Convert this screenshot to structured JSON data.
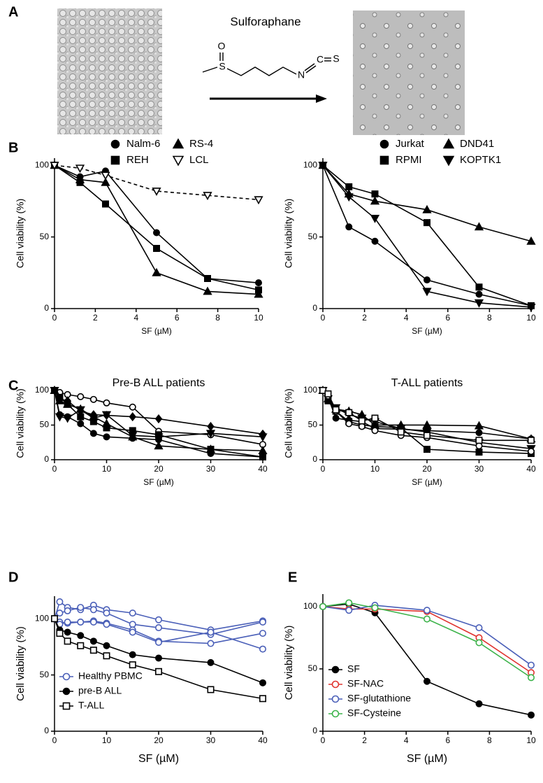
{
  "figure": {
    "panel_labels": [
      "A",
      "B",
      "C",
      "D",
      "E"
    ],
    "compound_name": "Sulforaphane",
    "atoms": [
      "O",
      "S",
      "N",
      "C",
      "S"
    ]
  },
  "chart_data": [
    {
      "type": "line",
      "x": [
        0,
        1.25,
        2.5,
        5,
        7.5,
        10
      ],
      "xlim": [
        0,
        10
      ],
      "xticks": [
        0,
        2,
        4,
        6,
        8,
        10
      ],
      "ylim": [
        0,
        105
      ],
      "yticks": [
        0,
        50,
        100
      ],
      "xlabel": "SF (µM)",
      "ylabel": "Cell viability (%)",
      "series": [
        {
          "name": "Nalm-6",
          "color": "#000000",
          "marker": "circle",
          "filled": true,
          "values": [
            100,
            92,
            96,
            53,
            21,
            18
          ]
        },
        {
          "name": "REH",
          "color": "#000000",
          "marker": "square",
          "filled": true,
          "values": [
            100,
            88,
            73,
            42,
            21,
            13
          ]
        },
        {
          "name": "RS-4",
          "color": "#000000",
          "marker": "triangle",
          "filled": true,
          "values": [
            100,
            90,
            88,
            25,
            12,
            10
          ]
        },
        {
          "name": "LCL",
          "color": "#000000",
          "marker": "triangle-down",
          "filled": false,
          "dashed": true,
          "values": [
            100,
            98,
            93,
            82,
            79,
            76
          ]
        }
      ]
    },
    {
      "type": "line",
      "x": [
        0,
        1.25,
        2.5,
        5,
        7.5,
        10
      ],
      "xlim": [
        0,
        10
      ],
      "xticks": [
        0,
        2,
        4,
        6,
        8,
        10
      ],
      "ylim": [
        0,
        105
      ],
      "yticks": [
        0,
        50,
        100
      ],
      "xlabel": "SF (µM)",
      "ylabel": "Cell viability (%)",
      "series": [
        {
          "name": "Jurkat",
          "color": "#000000",
          "marker": "circle",
          "filled": true,
          "values": [
            100,
            57,
            47,
            20,
            10,
            2
          ]
        },
        {
          "name": "RPMI",
          "color": "#000000",
          "marker": "square",
          "filled": true,
          "values": [
            100,
            85,
            80,
            60,
            15,
            2
          ]
        },
        {
          "name": "DND41",
          "color": "#000000",
          "marker": "triangle",
          "filled": true,
          "values": [
            100,
            80,
            75,
            69,
            57,
            47
          ]
        },
        {
          "name": "KOPTK1",
          "color": "#000000",
          "marker": "triangle-down",
          "filled": true,
          "values": [
            100,
            78,
            63,
            12,
            4,
            1
          ]
        }
      ]
    },
    {
      "type": "line",
      "title": "Pre-B ALL patients",
      "x": [
        0,
        1,
        2.5,
        5,
        7.5,
        10,
        15,
        20,
        30,
        40
      ],
      "xlim": [
        0,
        40
      ],
      "xticks": [
        0,
        10,
        20,
        30,
        40
      ],
      "ylim": [
        0,
        105
      ],
      "yticks": [
        0,
        50,
        100
      ],
      "xlabel": "SF (µM)",
      "ylabel": "Cell viability (%)",
      "series": [
        {
          "color": "#000000",
          "marker": "circle",
          "filled": false,
          "values": [
            100,
            97,
            94,
            91,
            87,
            82,
            76,
            41,
            36,
            22
          ]
        },
        {
          "color": "#000000",
          "marker": "diamond",
          "filled": true,
          "values": [
            100,
            88,
            85,
            70,
            65,
            64,
            62,
            59,
            48,
            37
          ]
        },
        {
          "color": "#000000",
          "marker": "square",
          "filled": true,
          "values": [
            100,
            90,
            80,
            62,
            55,
            46,
            42,
            36,
            15,
            4
          ]
        },
        {
          "color": "#000000",
          "marker": "circle",
          "filled": true,
          "values": [
            100,
            65,
            62,
            52,
            38,
            33,
            31,
            29,
            9,
            4
          ]
        },
        {
          "color": "#000000",
          "marker": "triangle",
          "filled": true,
          "values": [
            100,
            85,
            80,
            73,
            62,
            52,
            33,
            20,
            15,
            13
          ]
        },
        {
          "color": "#000000",
          "marker": "triangle-down",
          "filled": true,
          "values": [
            100,
            62,
            60,
            72,
            60,
            65,
            35,
            33,
            38,
            33
          ]
        }
      ]
    },
    {
      "type": "line",
      "title": "T-ALL patients",
      "x": [
        0,
        1,
        2.5,
        5,
        7.5,
        10,
        15,
        20,
        30,
        40
      ],
      "xlim": [
        0,
        40
      ],
      "xticks": [
        0,
        10,
        20,
        30,
        40
      ],
      "ylim": [
        0,
        105
      ],
      "yticks": [
        0,
        50,
        100
      ],
      "xlabel": "SF (µM)",
      "ylabel": "Cell viability (%)",
      "series": [
        {
          "color": "#000000",
          "marker": "circle",
          "filled": true,
          "values": [
            100,
            90,
            60,
            57,
            55,
            45,
            44,
            42,
            39,
            30
          ]
        },
        {
          "color": "#000000",
          "marker": "triangle",
          "filled": true,
          "values": [
            100,
            88,
            73,
            70,
            65,
            50,
            50,
            50,
            49,
            30
          ]
        },
        {
          "color": "#000000",
          "marker": "square",
          "filled": true,
          "values": [
            100,
            85,
            70,
            55,
            50,
            48,
            46,
            15,
            11,
            9
          ]
        },
        {
          "color": "#000000",
          "marker": "triangle-down",
          "filled": true,
          "values": [
            100,
            88,
            75,
            65,
            60,
            55,
            45,
            40,
            25,
            16
          ]
        },
        {
          "color": "#000000",
          "marker": "circle",
          "filled": false,
          "values": [
            100,
            92,
            70,
            52,
            48,
            42,
            35,
            32,
            20,
            12
          ]
        },
        {
          "color": "#000000",
          "marker": "square",
          "filled": false,
          "values": [
            100,
            95,
            72,
            68,
            56,
            60,
            40,
            35,
            28,
            28
          ]
        }
      ]
    },
    {
      "type": "line",
      "x": [
        0,
        1,
        2.5,
        5,
        7.5,
        10,
        15,
        20,
        30,
        40
      ],
      "xlim": [
        0,
        40
      ],
      "xticks": [
        0,
        10,
        20,
        30,
        40
      ],
      "ylim": [
        0,
        120
      ],
      "yticks": [
        0,
        50,
        100
      ],
      "xlabel": "SF (µM)",
      "ylabel": "Cell viability (%)",
      "series": [
        {
          "name": "Healthy PBMC",
          "color": "#4a5fb8",
          "marker": "circle",
          "filled": false,
          "values": [
            100,
            115,
            110,
            108,
            112,
            108,
            105,
            99,
            90,
            98
          ]
        },
        {
          "color": "#4a5fb8",
          "marker": "circle",
          "filled": false,
          "values": [
            100,
            105,
            107,
            110,
            108,
            105,
            95,
            92,
            86,
            97
          ]
        },
        {
          "color": "#4a5fb8",
          "marker": "circle",
          "filled": false,
          "values": [
            100,
            97,
            96,
            97,
            98,
            96,
            90,
            80,
            78,
            87
          ]
        },
        {
          "color": "#4a5fb8",
          "marker": "circle",
          "filled": false,
          "values": [
            100,
            95,
            97,
            97,
            97,
            95,
            88,
            79,
            88,
            73
          ]
        },
        {
          "name": "pre-B ALL",
          "color": "#000000",
          "marker": "circle",
          "filled": true,
          "values": [
            100,
            90,
            88,
            85,
            80,
            76,
            68,
            65,
            61,
            43
          ]
        },
        {
          "name": "T-ALL",
          "color": "#000000",
          "marker": "square",
          "filled": false,
          "values": [
            100,
            87,
            80,
            76,
            72,
            67,
            59,
            53,
            37,
            29
          ]
        }
      ]
    },
    {
      "type": "line",
      "x": [
        0,
        1.25,
        2.5,
        5,
        7.5,
        10
      ],
      "xlim": [
        0,
        10
      ],
      "xticks": [
        0,
        2,
        4,
        6,
        8,
        10
      ],
      "ylim": [
        0,
        110
      ],
      "yticks": [
        0,
        50,
        100
      ],
      "xlabel": "SF (µM)",
      "ylabel": "Cell viability (%)",
      "series": [
        {
          "name": "SF",
          "color": "#000000",
          "marker": "circle",
          "filled": true,
          "values": [
            100,
            102,
            95,
            40,
            22,
            13
          ]
        },
        {
          "name": "SF-NAC",
          "color": "#e0332e",
          "marker": "circle",
          "filled": false,
          "values": [
            100,
            98,
            98,
            96,
            75,
            47
          ]
        },
        {
          "name": "SF-glutathione",
          "color": "#4a5fb8",
          "marker": "circle",
          "filled": false,
          "values": [
            100,
            97,
            101,
            97,
            83,
            53
          ]
        },
        {
          "name": "SF-Cysteine",
          "color": "#3cb34a",
          "marker": "circle",
          "filled": false,
          "values": [
            100,
            103,
            99,
            90,
            71,
            43
          ]
        }
      ]
    }
  ]
}
